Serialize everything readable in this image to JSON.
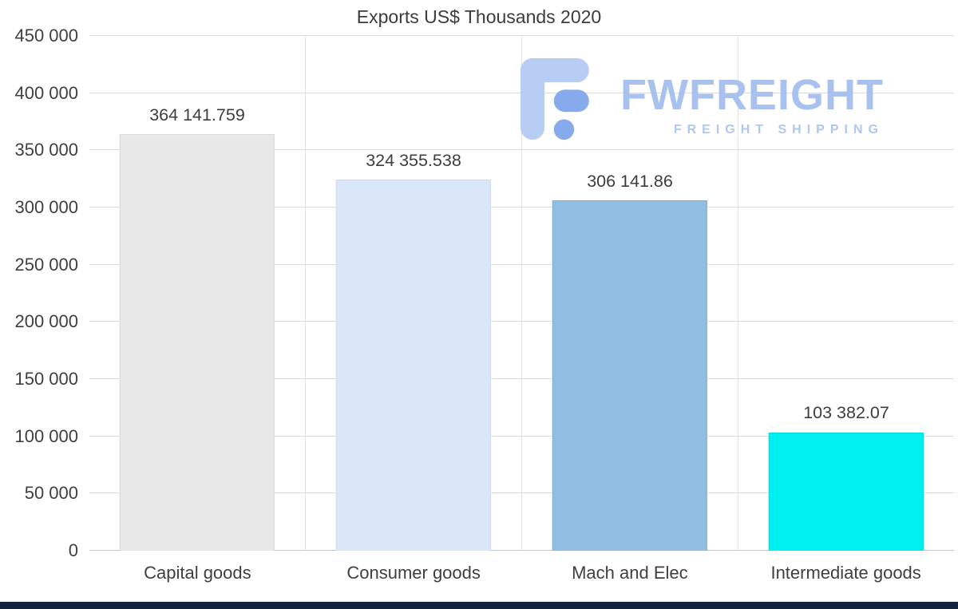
{
  "title": "Exports US$ Thousands 2020",
  "watermark": {
    "brand": "FWFREIGHT",
    "tagline": "FREIGHT SHIPPING",
    "text_color": "#a6c0ef",
    "tagline_color": "#aec5f0",
    "icon_color_light": "#b6ccf4",
    "icon_color_dark": "#84a8ec"
  },
  "footer_bar_color": "#16233d",
  "chart_data": {
    "type": "bar",
    "title": "Exports US$ Thousands 2020",
    "categories": [
      "Capital goods",
      "Consumer goods",
      "Mach and Elec",
      "Intermediate goods"
    ],
    "values": [
      364141.759,
      324355.538,
      306141.86,
      103382.07
    ],
    "value_labels": [
      "364 141.759",
      "324 355.538",
      "306 141.86",
      "103 382.07"
    ],
    "bar_colors": [
      "#e8e8e8",
      "#d9e7f8",
      "#90bee2",
      "#00f0f0"
    ],
    "bar_border_colors": [
      "#d9d9d9",
      "#c7dcf4",
      "#7eb0d8",
      "#00d9d9"
    ],
    "xlabel": "",
    "ylabel": "",
    "ylim": [
      0,
      450000
    ],
    "ytick_step": 50000,
    "ytick_labels": [
      "0",
      "50 000",
      "100 000",
      "150 000",
      "200 000",
      "250 000",
      "300 000",
      "350 000",
      "400 000",
      "450 000"
    ],
    "grid": true,
    "legend": false
  }
}
